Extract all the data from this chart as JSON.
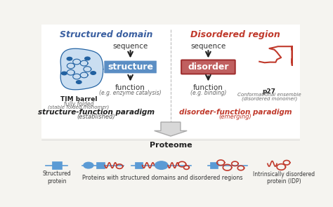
{
  "bg_color": "#f5f4f0",
  "title_left": "Structured domain",
  "title_right": "Disordered region",
  "title_left_color": "#3a5fa0",
  "title_right_color": "#c0392b",
  "left_box_text": "structure",
  "left_box_color": "#5b8ec4",
  "right_box_text": "disorder",
  "right_box_color": "#c06060",
  "paradigm_left": "structure-function paradigm",
  "paradigm_left_sub": "(established)",
  "paradigm_right": "disorder-function paradigm",
  "paradigm_right_sub": "(emerging)",
  "paradigm_right_color": "#c0392b",
  "proteome_title": "Proteome",
  "structured_label": "Structured\nprotein",
  "middle_label": "Proteins with structured domains and disordered regions",
  "idp_label": "Intrinsically disordered\nprotein (IDP)",
  "blue_color": "#5b9bd5",
  "red_color": "#c0392b",
  "divider_color": "#cccccc",
  "arrow_gray": "#b0b0b0"
}
